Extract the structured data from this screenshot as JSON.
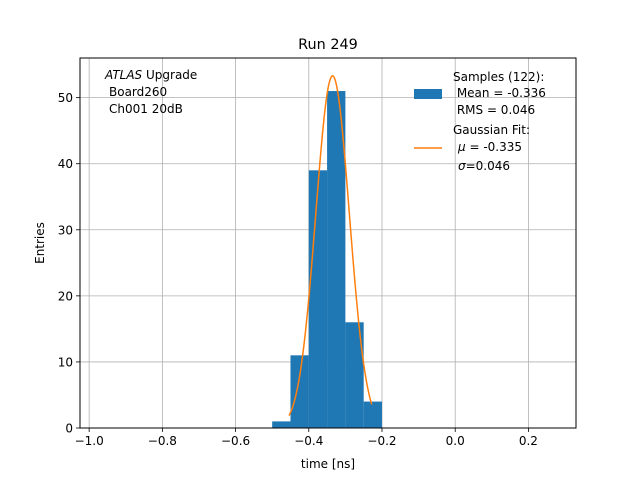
{
  "chart_data": {
    "type": "bar",
    "title": "Run 249",
    "xlabel": "time [ns]",
    "ylabel": "Entries",
    "xlim": [
      -1.025,
      0.33
    ],
    "ylim": [
      0,
      56
    ],
    "grid": true,
    "xticks": [
      -1.0,
      -0.8,
      -0.6,
      -0.4,
      -0.2,
      0.0,
      0.2
    ],
    "xtick_labels": [
      "−1.0",
      "−0.8",
      "−0.6",
      "−0.4",
      "−0.2",
      "0.0",
      "0.2"
    ],
    "yticks": [
      0,
      10,
      20,
      30,
      40,
      50
    ],
    "yticks_labels": [
      "0",
      "10",
      "20",
      "30",
      "40",
      "50"
    ],
    "annotation": {
      "line1_italic": "ATLAS",
      "line1_rest": " Upgrade",
      "line2": "Board260",
      "line3": "Ch001 20dB"
    },
    "legend_position": "top-right",
    "histogram": {
      "color": "#1f77b4",
      "bins": [
        {
          "left": -0.5,
          "right": -0.45,
          "count": 1
        },
        {
          "left": -0.45,
          "right": -0.4,
          "count": 11
        },
        {
          "left": -0.4,
          "right": -0.35,
          "count": 39
        },
        {
          "left": -0.35,
          "right": -0.3,
          "count": 51
        },
        {
          "left": -0.3,
          "right": -0.25,
          "count": 16
        },
        {
          "left": -0.25,
          "right": -0.2,
          "count": 4
        }
      ],
      "legend_lines": [
        "Samples (122):",
        " Mean = -0.336",
        " RMS = 0.046"
      ]
    },
    "fit": {
      "color": "#ff7f0e",
      "mu": -0.335,
      "sigma": 0.046,
      "amplitude": 53.3,
      "x_range": [
        -0.454,
        -0.228
      ],
      "legend_title": "Gaussian Fit:",
      "legend_mu_symbol": "μ",
      "legend_mu_text": " = -0.335",
      "legend_sigma_symbol": "σ",
      "legend_sigma_text": "=0.046"
    }
  }
}
